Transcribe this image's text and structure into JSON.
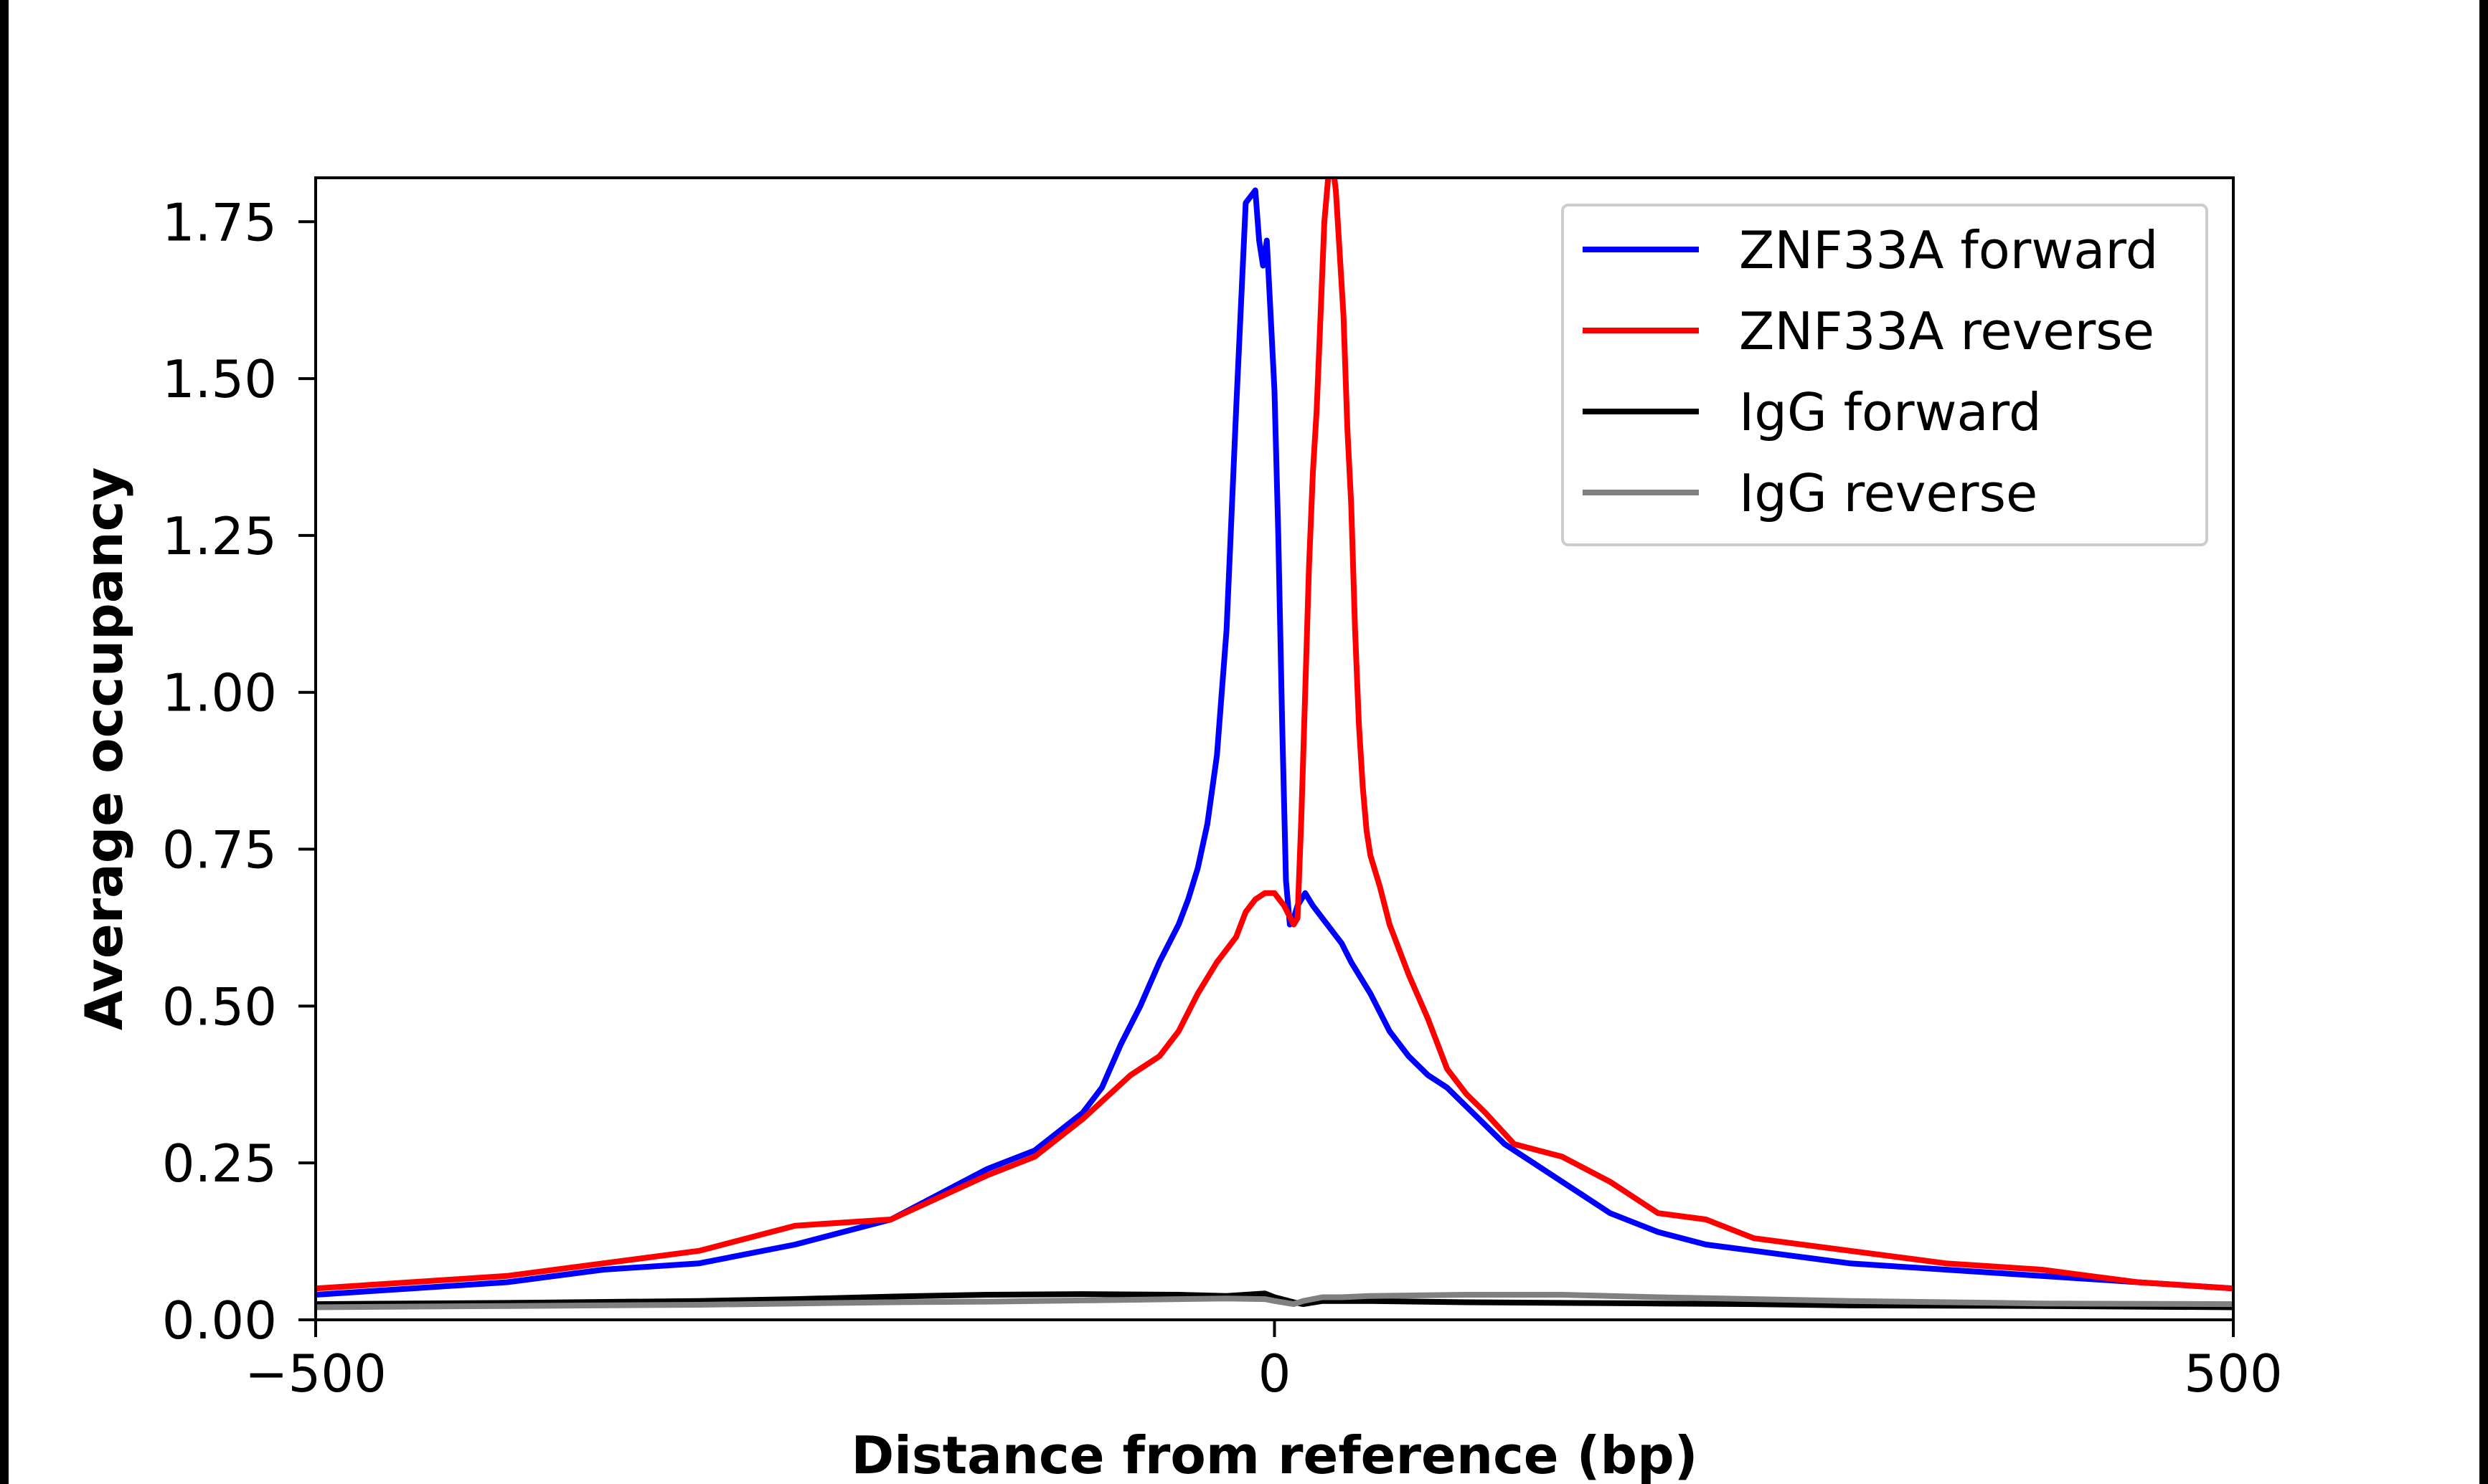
{
  "chart_data": {
    "type": "line",
    "title": "",
    "xlabel": "Distance from reference (bp)",
    "ylabel": "Average occupancy",
    "xlim": [
      -500,
      500
    ],
    "ylim": [
      0,
      1.82
    ],
    "xticks": [
      -500,
      0,
      500
    ],
    "xtick_labels": [
      "−500",
      "0",
      "500"
    ],
    "yticks": [
      0,
      0.25,
      0.5,
      0.75,
      1.0,
      1.25,
      1.5,
      1.75
    ],
    "ytick_labels": [
      "0.00",
      "0.25",
      "0.50",
      "0.75",
      "1.00",
      "1.25",
      "1.50",
      "1.75"
    ],
    "grid": false,
    "legend_position": "upper-right",
    "series": [
      {
        "name": "ZNF33A forward",
        "color": "#0000ff",
        "x": [
          -500,
          -450,
          -400,
          -350,
          -300,
          -250,
          -200,
          -150,
          -125,
          -100,
          -90,
          -80,
          -70,
          -60,
          -50,
          -45,
          -40,
          -35,
          -30,
          -25,
          -20,
          -15,
          -10,
          -8,
          -6,
          -4,
          -2,
          0,
          2,
          4,
          6,
          8,
          10,
          12,
          14,
          16,
          18,
          20,
          25,
          30,
          35,
          40,
          50,
          60,
          70,
          80,
          90,
          100,
          120,
          140,
          150,
          160,
          175,
          200,
          225,
          250,
          300,
          350,
          400,
          450,
          500
        ],
        "y": [
          0.04,
          0.05,
          0.06,
          0.08,
          0.09,
          0.12,
          0.16,
          0.24,
          0.27,
          0.33,
          0.37,
          0.44,
          0.5,
          0.57,
          0.63,
          0.67,
          0.72,
          0.79,
          0.9,
          1.1,
          1.45,
          1.78,
          1.8,
          1.72,
          1.68,
          1.72,
          1.6,
          1.48,
          1.25,
          0.95,
          0.7,
          0.63,
          0.64,
          0.66,
          0.67,
          0.68,
          0.67,
          0.66,
          0.64,
          0.62,
          0.6,
          0.57,
          0.52,
          0.46,
          0.42,
          0.39,
          0.37,
          0.34,
          0.28,
          0.24,
          0.22,
          0.2,
          0.17,
          0.14,
          0.12,
          0.11,
          0.09,
          0.08,
          0.07,
          0.06,
          0.05
        ]
      },
      {
        "name": "ZNF33A reverse",
        "color": "#ff0000",
        "x": [
          -500,
          -450,
          -400,
          -350,
          -300,
          -250,
          -200,
          -150,
          -125,
          -100,
          -75,
          -60,
          -50,
          -40,
          -30,
          -20,
          -15,
          -10,
          -5,
          0,
          5,
          10,
          12,
          14,
          16,
          18,
          20,
          22,
          24,
          26,
          28,
          30,
          32,
          34,
          36,
          38,
          40,
          42,
          44,
          46,
          48,
          50,
          55,
          60,
          70,
          80,
          90,
          100,
          110,
          125,
          150,
          175,
          200,
          225,
          250,
          300,
          350,
          400,
          450,
          500
        ],
        "y": [
          0.05,
          0.06,
          0.07,
          0.09,
          0.11,
          0.15,
          0.16,
          0.23,
          0.26,
          0.32,
          0.39,
          0.42,
          0.46,
          0.52,
          0.57,
          0.61,
          0.65,
          0.67,
          0.68,
          0.68,
          0.66,
          0.63,
          0.64,
          0.8,
          1.0,
          1.2,
          1.35,
          1.45,
          1.6,
          1.75,
          1.82,
          1.85,
          1.8,
          1.7,
          1.6,
          1.42,
          1.3,
          1.1,
          0.95,
          0.85,
          0.78,
          0.74,
          0.69,
          0.63,
          0.55,
          0.48,
          0.4,
          0.36,
          0.33,
          0.28,
          0.26,
          0.22,
          0.17,
          0.16,
          0.13,
          0.11,
          0.09,
          0.08,
          0.06,
          0.05
        ]
      },
      {
        "name": "IgG forward",
        "color": "#000000",
        "x": [
          -500,
          -400,
          -300,
          -250,
          -200,
          -150,
          -100,
          -50,
          -25,
          -5,
          0,
          10,
          15,
          25,
          35,
          50,
          100,
          150,
          200,
          250,
          300,
          400,
          500
        ],
        "y": [
          0.025,
          0.027,
          0.03,
          0.033,
          0.037,
          0.04,
          0.041,
          0.04,
          0.038,
          0.042,
          0.036,
          0.028,
          0.025,
          0.03,
          0.03,
          0.03,
          0.028,
          0.027,
          0.026,
          0.025,
          0.023,
          0.022,
          0.02
        ]
      },
      {
        "name": "IgG reverse",
        "color": "#808080",
        "x": [
          -500,
          -400,
          -300,
          -250,
          -200,
          -150,
          -100,
          -50,
          -25,
          -5,
          0,
          10,
          15,
          25,
          35,
          50,
          100,
          150,
          200,
          250,
          300,
          400,
          500
        ],
        "y": [
          0.02,
          0.022,
          0.024,
          0.026,
          0.028,
          0.029,
          0.031,
          0.033,
          0.034,
          0.033,
          0.03,
          0.025,
          0.03,
          0.036,
          0.036,
          0.038,
          0.04,
          0.04,
          0.036,
          0.033,
          0.03,
          0.026,
          0.025
        ]
      }
    ]
  }
}
